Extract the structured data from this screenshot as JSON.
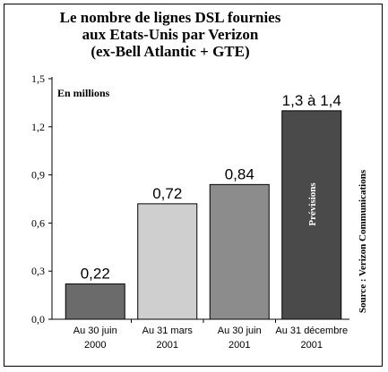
{
  "title_lines": [
    "Le nombre de lignes DSL fournies",
    "aux Etats-Unis par Verizon",
    "(ex-Bell Atlantic + GTE)"
  ],
  "unit_label": "En millions",
  "source": "Source : Verizon Communications",
  "chart_data": {
    "type": "bar",
    "title": "Le nombre de lignes DSL fournies aux Etats-Unis par Verizon (ex-Bell Atlantic + GTE)",
    "ylabel": "En millions",
    "ylim": [
      0,
      1.5
    ],
    "yticks": [
      "0,0",
      "0,3",
      "0,6",
      "0,9",
      "1,2",
      "1,5"
    ],
    "categories": [
      [
        "Au 30 juin",
        "2000"
      ],
      [
        "Au 31 mars",
        "2001"
      ],
      [
        "Au 30 juin",
        "2001"
      ],
      [
        "Au 31 décembre",
        "2001"
      ]
    ],
    "values": [
      0.22,
      0.72,
      0.84,
      1.3
    ],
    "value_labels": [
      "0,22",
      "0,72",
      "0,84",
      "1,3 à 1,4"
    ],
    "bar_colors": [
      "#6b6b6b",
      "#cfcfcf",
      "#8c8c8c",
      "#4a4a4a"
    ],
    "annotations": [
      {
        "bar_index": 3,
        "text": "Prévisions"
      }
    ],
    "grid": false,
    "legend": "none"
  }
}
